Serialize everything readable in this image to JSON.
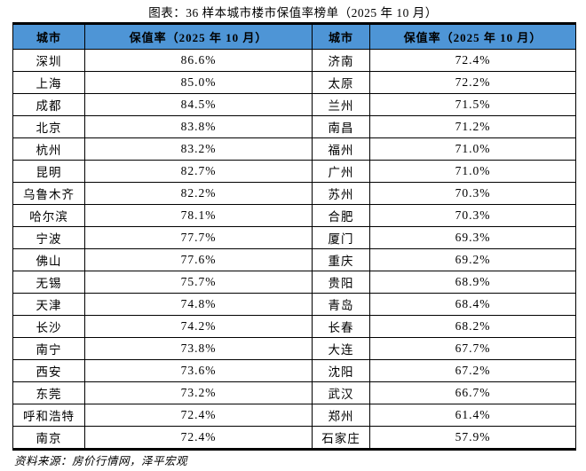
{
  "title": "图表：36 样本城市楼市保值率榜单（2025 年 10 月）",
  "source_note": "资料来源：房价行情网，泽平宏观",
  "colors": {
    "header_bg": "#4E95D6",
    "border": "#000000",
    "text": "#000000",
    "background": "#ffffff"
  },
  "table": {
    "headers": [
      "城市",
      "保值率（2025 年 10 月）",
      "城市",
      "保值率（2025 年 10 月）"
    ],
    "rows": [
      [
        "深圳",
        "86.6%",
        "济南",
        "72.4%"
      ],
      [
        "上海",
        "85.0%",
        "太原",
        "72.2%"
      ],
      [
        "成都",
        "84.5%",
        "兰州",
        "71.5%"
      ],
      [
        "北京",
        "83.8%",
        "南昌",
        "71.2%"
      ],
      [
        "杭州",
        "83.2%",
        "福州",
        "71.0%"
      ],
      [
        "昆明",
        "82.7%",
        "广州",
        "71.0%"
      ],
      [
        "乌鲁木齐",
        "82.2%",
        "苏州",
        "70.3%"
      ],
      [
        "哈尔滨",
        "78.1%",
        "合肥",
        "70.3%"
      ],
      [
        "宁波",
        "77.7%",
        "厦门",
        "69.3%"
      ],
      [
        "佛山",
        "77.6%",
        "重庆",
        "69.2%"
      ],
      [
        "无锡",
        "75.7%",
        "贵阳",
        "68.9%"
      ],
      [
        "天津",
        "74.8%",
        "青岛",
        "68.4%"
      ],
      [
        "长沙",
        "74.2%",
        "长春",
        "68.2%"
      ],
      [
        "南宁",
        "73.8%",
        "大连",
        "67.7%"
      ],
      [
        "西安",
        "73.6%",
        "沈阳",
        "67.2%"
      ],
      [
        "东莞",
        "73.2%",
        "武汉",
        "66.7%"
      ],
      [
        "呼和浩特",
        "72.4%",
        "郑州",
        "61.4%"
      ],
      [
        "南京",
        "72.4%",
        "石家庄",
        "57.9%"
      ]
    ]
  },
  "chart_data": {
    "type": "table",
    "title": "图表：36 样本城市楼市保值率榜单（2025 年 10 月）",
    "columns": [
      "城市",
      "保值率（2025 年 10 月）",
      "城市",
      "保值率（2025 年 10 月）"
    ],
    "cities": [
      "深圳",
      "上海",
      "成都",
      "北京",
      "杭州",
      "昆明",
      "乌鲁木齐",
      "哈尔滨",
      "宁波",
      "佛山",
      "无锡",
      "天津",
      "长沙",
      "南宁",
      "西安",
      "东莞",
      "呼和浩特",
      "南京",
      "济南",
      "太原",
      "兰州",
      "南昌",
      "福州",
      "广州",
      "苏州",
      "合肥",
      "厦门",
      "重庆",
      "贵阳",
      "青岛",
      "长春",
      "大连",
      "沈阳",
      "武汉",
      "郑州",
      "石家庄"
    ],
    "retention_rates_pct": [
      86.6,
      85.0,
      84.5,
      83.8,
      83.2,
      82.7,
      82.2,
      78.1,
      77.7,
      77.6,
      75.7,
      74.8,
      74.2,
      73.8,
      73.6,
      73.2,
      72.4,
      72.4,
      72.4,
      72.2,
      71.5,
      71.2,
      71.0,
      71.0,
      70.3,
      70.3,
      69.3,
      69.2,
      68.9,
      68.4,
      68.2,
      67.7,
      67.2,
      66.7,
      61.4,
      57.9
    ],
    "source": "资料来源：房价行情网，泽平宏观"
  }
}
